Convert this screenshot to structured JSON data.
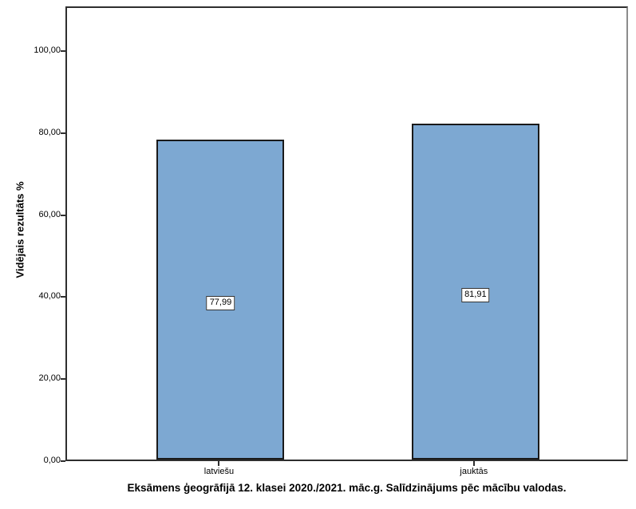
{
  "chart_data": {
    "type": "bar",
    "title": "",
    "categories": [
      "latviešu",
      "jauktās"
    ],
    "values": [
      77.99,
      81.91
    ],
    "value_labels": [
      "77,99",
      "81,91"
    ],
    "ylabel": "Vidējais rezultāts %",
    "xlabel": "Eksāmens ģeogrāfijā 12. klasei 2020./2021. māc.g. Salīdzinājums pēc mācību valodas.",
    "ylim": [
      0,
      110.9
    ],
    "yticks": [
      0,
      20,
      40,
      60,
      80,
      100
    ],
    "ytick_labels": [
      "0,00",
      "20,00",
      "40,00",
      "60,00",
      "80,00",
      "100,00"
    ],
    "grid": false,
    "legend": null,
    "colors": {
      "bar_fill": "#7DA8D2",
      "bar_border": "#1a1a1a",
      "frame": "#2e2e2e",
      "label_box_bg": "#ffffff",
      "label_box_border": "#333333"
    }
  }
}
